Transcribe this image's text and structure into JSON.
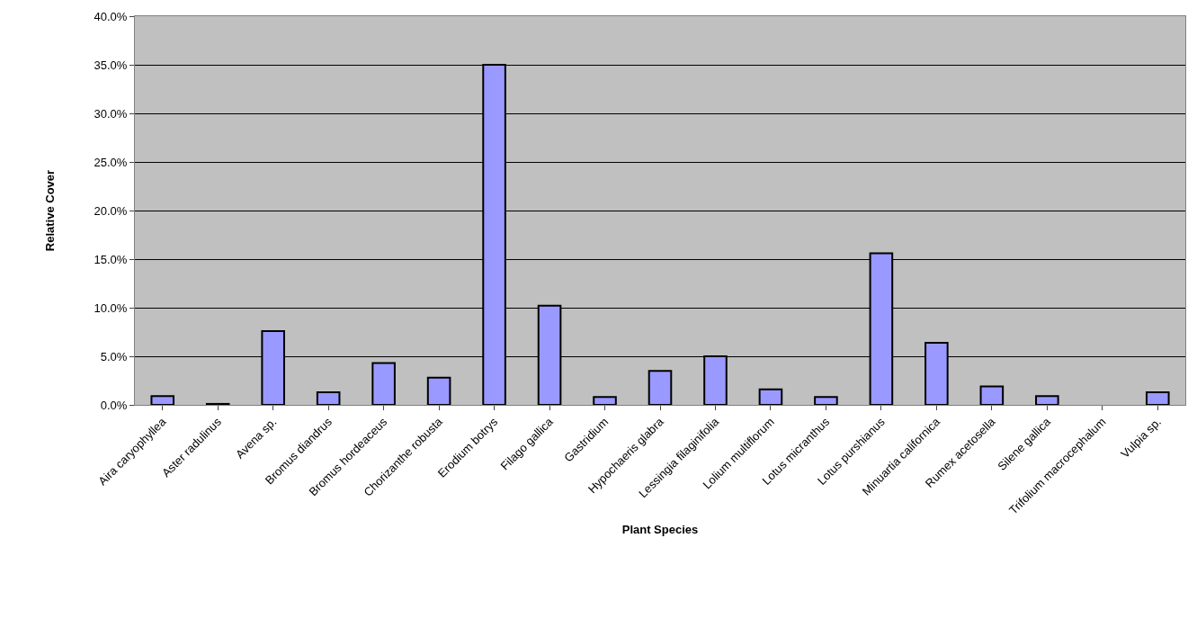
{
  "chart_data": {
    "type": "bar",
    "xlabel": "Plant Species",
    "ylabel": "Relative Cover",
    "categories": [
      "Aira caryophyllea",
      "Aster radulinus",
      "Avena sp.",
      "Bromus diandrus",
      "Bromus hordeaceus",
      "Chorizanthe robusta",
      "Erodium botrys",
      "Filago gallica",
      "Gastridium",
      "Hypochaeris glabra",
      "Lessingia filaginifolia",
      "Lolium multiflorum",
      "Lotus micranthus",
      "Lotus purshianus",
      "Minuartia californica",
      "Rumex acetosella",
      "Silene gallica",
      "Trifolium macrocephalum",
      "Vulpia sp."
    ],
    "values": [
      0.9,
      0.1,
      7.6,
      1.3,
      4.3,
      2.8,
      35.0,
      10.2,
      0.8,
      3.5,
      5.0,
      1.6,
      0.8,
      15.6,
      6.4,
      1.9,
      0.9,
      0,
      1.3
    ],
    "color": "#9999ff",
    "ylim": [
      0,
      40
    ],
    "yticks": [
      {
        "value": 0,
        "label": "0.0%"
      },
      {
        "value": 5,
        "label": "5.0%"
      },
      {
        "value": 10,
        "label": "10.0%"
      },
      {
        "value": 15,
        "label": "15.0%"
      },
      {
        "value": 20,
        "label": "20.0%"
      },
      {
        "value": 25,
        "label": "25.0%"
      },
      {
        "value": 30,
        "label": "30.0%"
      },
      {
        "value": 35,
        "label": "35.0%"
      },
      {
        "value": 40,
        "label": "40.0%"
      }
    ],
    "grid": "y",
    "legend": false
  }
}
